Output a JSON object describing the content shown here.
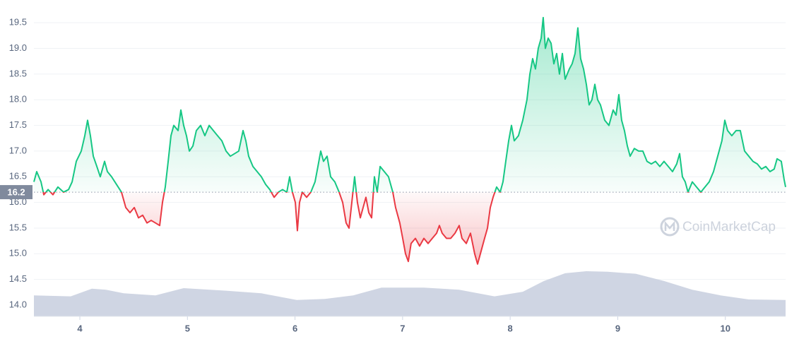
{
  "chart_data": {
    "type": "line",
    "x": [
      3.573,
      3.599,
      3.639,
      3.665,
      3.705,
      3.75,
      3.796,
      3.849,
      3.895,
      3.928,
      3.967,
      4.013,
      4.046,
      4.072,
      4.098,
      4.125,
      4.158,
      4.19,
      4.23,
      4.256,
      4.295,
      4.341,
      4.387,
      4.427,
      4.466,
      4.506,
      4.545,
      4.584,
      4.624,
      4.663,
      4.703,
      4.742,
      4.768,
      4.794,
      4.821,
      4.847,
      4.873,
      4.913,
      4.939,
      4.965,
      4.991,
      5.018,
      5.051,
      5.083,
      5.123,
      5.162,
      5.202,
      5.241,
      5.28,
      5.32,
      5.359,
      5.399,
      5.438,
      5.477,
      5.517,
      5.543,
      5.569,
      5.609,
      5.648,
      5.687,
      5.727,
      5.766,
      5.806,
      5.845,
      5.884,
      5.924,
      5.95,
      5.976,
      6.003,
      6.022,
      6.042,
      6.068,
      6.108,
      6.147,
      6.186,
      6.213,
      6.239,
      6.265,
      6.298,
      6.331,
      6.37,
      6.41,
      6.443,
      6.475,
      6.502,
      6.528,
      6.554,
      6.58,
      6.607,
      6.633,
      6.659,
      6.686,
      6.712,
      6.738,
      6.764,
      6.791,
      6.83,
      6.869,
      6.909,
      6.935,
      6.974,
      7.001,
      7.027,
      7.053,
      7.079,
      7.119,
      7.158,
      7.198,
      7.237,
      7.276,
      7.316,
      7.342,
      7.368,
      7.408,
      7.447,
      7.487,
      7.526,
      7.552,
      7.592,
      7.631,
      7.67,
      7.697,
      7.723,
      7.762,
      7.789,
      7.815,
      7.841,
      7.874,
      7.907,
      7.933,
      7.959,
      7.986,
      8.012,
      8.038,
      8.077,
      8.117,
      8.156,
      8.183,
      8.209,
      8.235,
      8.261,
      8.288,
      8.307,
      8.327,
      8.353,
      8.38,
      8.406,
      8.432,
      8.458,
      8.485,
      8.511,
      8.55,
      8.576,
      8.603,
      8.629,
      8.655,
      8.682,
      8.708,
      8.734,
      8.76,
      8.787,
      8.813,
      8.839,
      8.879,
      8.918,
      8.957,
      8.984,
      9.01,
      9.036,
      9.062,
      9.089,
      9.115,
      9.154,
      9.194,
      9.233,
      9.272,
      9.312,
      9.351,
      9.391,
      9.43,
      9.47,
      9.509,
      9.548,
      9.575,
      9.601,
      9.627,
      9.653,
      9.693,
      9.732,
      9.772,
      9.811,
      9.85,
      9.89,
      9.929,
      9.968,
      9.995,
      10.021,
      10.06,
      10.1,
      10.139,
      10.179,
      10.218,
      10.257,
      10.297,
      10.336,
      10.376,
      10.415,
      10.454,
      10.481,
      10.52,
      10.546,
      10.56
    ],
    "values": [
      16.4,
      16.6,
      16.4,
      16.15,
      16.25,
      16.15,
      16.3,
      16.2,
      16.25,
      16.4,
      16.8,
      17.0,
      17.3,
      17.6,
      17.3,
      16.9,
      16.7,
      16.5,
      16.8,
      16.6,
      16.5,
      16.35,
      16.2,
      15.9,
      15.8,
      15.9,
      15.7,
      15.75,
      15.6,
      15.65,
      15.6,
      15.55,
      16.0,
      16.3,
      16.8,
      17.3,
      17.5,
      17.4,
      17.8,
      17.5,
      17.3,
      17.0,
      17.1,
      17.4,
      17.5,
      17.3,
      17.5,
      17.4,
      17.3,
      17.2,
      17.0,
      16.9,
      16.95,
      17.0,
      17.4,
      17.2,
      16.9,
      16.7,
      16.6,
      16.5,
      16.35,
      16.25,
      16.1,
      16.2,
      16.25,
      16.2,
      16.5,
      16.2,
      16.0,
      15.45,
      16.0,
      16.2,
      16.1,
      16.2,
      16.4,
      16.7,
      17.0,
      16.8,
      16.9,
      16.5,
      16.4,
      16.2,
      16.0,
      15.6,
      15.5,
      16.0,
      16.5,
      16.0,
      15.7,
      15.9,
      16.1,
      15.8,
      15.7,
      16.5,
      16.2,
      16.7,
      16.6,
      16.5,
      16.2,
      15.9,
      15.6,
      15.3,
      15.0,
      14.85,
      15.2,
      15.3,
      15.15,
      15.3,
      15.2,
      15.3,
      15.4,
      15.55,
      15.4,
      15.3,
      15.3,
      15.4,
      15.55,
      15.3,
      15.2,
      15.4,
      15.0,
      14.8,
      15.0,
      15.3,
      15.5,
      15.9,
      16.1,
      16.3,
      16.2,
      16.4,
      16.8,
      17.2,
      17.5,
      17.2,
      17.3,
      17.6,
      18.0,
      18.5,
      18.8,
      18.6,
      19.0,
      19.2,
      19.6,
      19.0,
      19.2,
      19.1,
      18.7,
      18.9,
      18.5,
      18.9,
      18.4,
      18.6,
      18.7,
      18.9,
      19.4,
      18.8,
      18.6,
      18.3,
      17.9,
      18.0,
      18.3,
      18.0,
      17.9,
      17.6,
      17.5,
      17.8,
      17.7,
      18.1,
      17.6,
      17.4,
      17.1,
      16.9,
      17.05,
      17.0,
      17.0,
      16.8,
      16.75,
      16.8,
      16.7,
      16.8,
      16.7,
      16.6,
      16.75,
      16.95,
      16.5,
      16.4,
      16.2,
      16.4,
      16.3,
      16.2,
      16.3,
      16.4,
      16.6,
      16.9,
      17.2,
      17.6,
      17.4,
      17.3,
      17.4,
      17.4,
      17.0,
      16.9,
      16.8,
      16.75,
      16.65,
      16.7,
      16.6,
      16.65,
      16.85,
      16.8,
      16.45,
      16.3
    ],
    "up_color": "#16c784",
    "down_color": "#ea3943",
    "baseline": 16.2,
    "volume": {
      "color": "#cfd5e3",
      "x": [
        3.573,
        3.915,
        4.112,
        4.243,
        4.407,
        4.703,
        4.965,
        5.359,
        5.687,
        6.016,
        6.278,
        6.541,
        6.804,
        7.198,
        7.526,
        7.854,
        8.117,
        8.314,
        8.511,
        8.708,
        8.905,
        9.167,
        9.43,
        9.693,
        9.955,
        10.218,
        10.56
      ],
      "values": [
        14.19,
        14.17,
        14.32,
        14.3,
        14.23,
        14.19,
        14.33,
        14.28,
        14.23,
        14.1,
        14.12,
        14.19,
        14.34,
        14.34,
        14.3,
        14.17,
        14.26,
        14.47,
        14.62,
        14.66,
        14.65,
        14.61,
        14.47,
        14.3,
        14.19,
        14.11,
        14.1
      ]
    },
    "xlim": [
      3.573,
      10.56
    ],
    "xticks": [
      4,
      5,
      6,
      7,
      8,
      9,
      10
    ],
    "ylim": [
      13.78,
      19.75
    ],
    "yticks": [
      {
        "value": 14,
        "label": "14.0"
      },
      14.5,
      {
        "value": 15,
        "label": "15.0"
      },
      15.5,
      {
        "value": 16,
        "label": "16.0"
      },
      16.5,
      {
        "value": 17,
        "label": "17.0"
      },
      17.5,
      {
        "value": 18,
        "label": "18.0"
      },
      18.5,
      {
        "value": 19,
        "label": "19.0"
      },
      19.5
    ],
    "grid": true,
    "watermark": "CoinMarketCap"
  }
}
